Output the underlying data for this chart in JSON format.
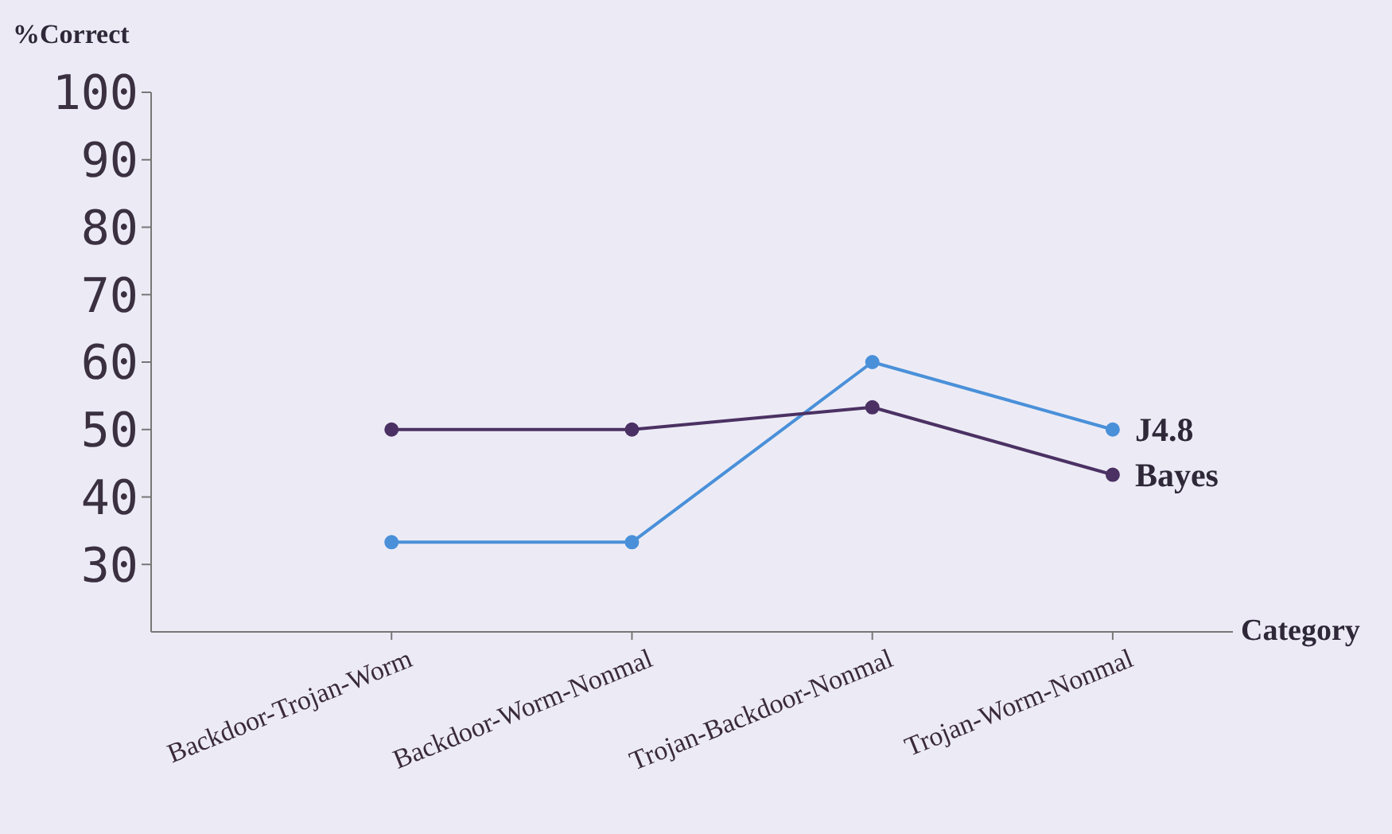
{
  "chart_data": {
    "type": "line",
    "xlabel": "Category",
    "ylabel": "%Correct",
    "categories": [
      "Backdoor-Trojan-Worm",
      "Backdoor-Worm-Nonmal",
      "Trojan-Backdoor-Nonmal",
      "Trojan-Worm-Nonmal"
    ],
    "series": [
      {
        "name": "J4.8",
        "color": "#4a90d9",
        "values": [
          33.3,
          33.3,
          60,
          50
        ]
      },
      {
        "name": "Bayes",
        "color": "#4b3163",
        "values": [
          50,
          50,
          53.3,
          43.3
        ]
      }
    ],
    "ylim": [
      20,
      100
    ],
    "yticks": [
      30,
      40,
      50,
      60,
      70,
      80,
      90,
      100
    ],
    "grid": false,
    "legend": false,
    "marker": "circle",
    "line_style": "solid"
  }
}
